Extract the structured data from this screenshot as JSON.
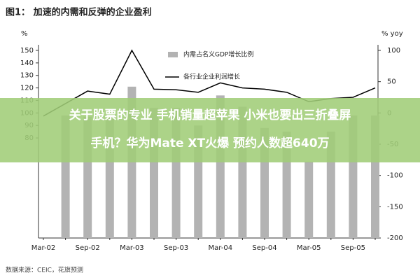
{
  "chart_data": {
    "type": "combo",
    "title": "图1： 加速的内需和反弹的企业盈利",
    "y_label": "%",
    "y2_label": "% yoy",
    "source": "数据来源：CEIC，花旗预测",
    "categories": [
      "Mar-02",
      null,
      "Sep-02",
      null,
      "Mar-03",
      null,
      "Sep-03",
      null,
      "Mar-04",
      null,
      "Sep-04",
      null,
      "Mar-05",
      null,
      "Sep-05",
      null
    ],
    "series": [
      {
        "name": "内需占名义GDP增长比例",
        "kind": "bar",
        "color": "#b3b3b3",
        "values": [
          null,
          98,
          97,
          97,
          121,
          104,
          104,
          90,
          114,
          105,
          88,
          85,
          61,
          85,
          98,
          98
        ]
      },
      {
        "name": "各行业企业利润增长",
        "kind": "line",
        "axis": "y2",
        "color": "#000000",
        "values": [
          -5,
          15,
          35,
          30,
          100,
          38,
          37,
          33,
          48,
          40,
          38,
          33,
          18,
          23,
          25,
          40
        ]
      }
    ],
    "ylim": [
      0,
      150
    ],
    "yticks": [
      80,
      90,
      100,
      110,
      120,
      130,
      140,
      150
    ],
    "y2lim": [
      -200,
      100
    ],
    "y2ticks": [
      -200,
      -150,
      -100,
      -50,
      0,
      50,
      100
    ]
  },
  "overlay_text": [
    "关于股票的专业 手机销量超苹果 小米也要出三折叠屏",
    "手机？华为Mate XT火爆 预约人数超640万"
  ]
}
